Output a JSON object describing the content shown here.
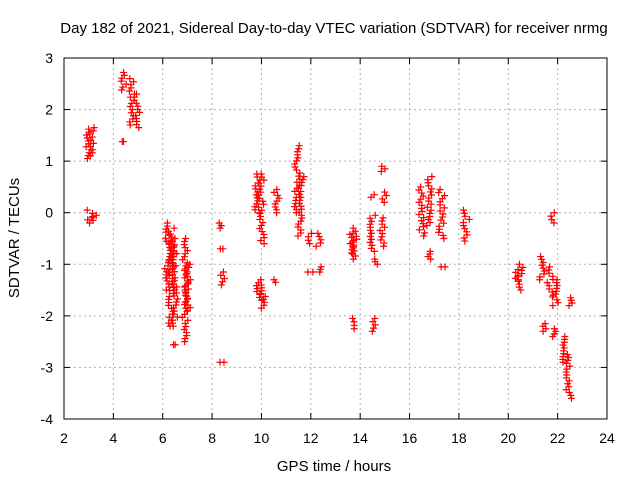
{
  "chart_data": {
    "type": "scatter",
    "title": "Day 182 of 2021, Sidereal Day-to-day VTEC variation (SDTVAR) for receiver nrmg",
    "xlabel": "GPS time / hours",
    "ylabel": "SDTVAR / TECUs",
    "xlim": [
      2,
      24
    ],
    "ylim": [
      -4,
      3
    ],
    "xticks": [
      "2",
      "4",
      "6",
      "8",
      "10",
      "12",
      "14",
      "16",
      "18",
      "20",
      "22",
      "24"
    ],
    "yticks": [
      "3",
      "2",
      "1",
      "0",
      "-1",
      "-2",
      "-3",
      "-4"
    ],
    "grid": true,
    "marker": "+",
    "color": "#ff0000",
    "clusters": [
      {
        "x": 3.0,
        "y": [
          1.05,
          1.62
        ]
      },
      {
        "x": 3.15,
        "y": [
          1.1,
          1.65
        ]
      },
      {
        "x": 3.05,
        "y": [
          -0.2,
          0.05
        ]
      },
      {
        "x": 3.2,
        "y": [
          -0.15,
          -0.05
        ]
      },
      {
        "x": 4.4,
        "y": [
          2.38,
          2.72
        ]
      },
      {
        "x": 4.4,
        "y": [
          1.38,
          1.38
        ]
      },
      {
        "x": 4.75,
        "y": [
          1.7,
          2.6
        ]
      },
      {
        "x": 4.95,
        "y": [
          1.65,
          2.3
        ]
      },
      {
        "x": 6.2,
        "y": [
          -1.5,
          -0.2
        ]
      },
      {
        "x": 6.35,
        "y": [
          -2.2,
          -0.3
        ]
      },
      {
        "x": 6.5,
        "y": [
          -2.2,
          -0.5
        ]
      },
      {
        "x": 6.55,
        "y": [
          -2.56,
          -2.56
        ]
      },
      {
        "x": 6.9,
        "y": [
          -2.5,
          -0.5
        ]
      },
      {
        "x": 7.0,
        "y": [
          -1.9,
          -1.0
        ]
      },
      {
        "x": 8.4,
        "y": [
          -0.3,
          -0.2
        ]
      },
      {
        "x": 8.4,
        "y": [
          -0.7,
          -0.7
        ]
      },
      {
        "x": 8.4,
        "y": [
          -1.4,
          -1.15
        ]
      },
      {
        "x": 8.4,
        "y": [
          -2.9,
          -2.9
        ]
      },
      {
        "x": 9.85,
        "y": [
          0.0,
          0.75
        ]
      },
      {
        "x": 10.0,
        "y": [
          -0.6,
          0.75
        ]
      },
      {
        "x": 9.9,
        "y": [
          -1.7,
          -1.3
        ]
      },
      {
        "x": 10.05,
        "y": [
          -1.85,
          -1.4
        ]
      },
      {
        "x": 10.6,
        "y": [
          0.0,
          0.45
        ]
      },
      {
        "x": 10.6,
        "y": [
          -1.35,
          -1.3
        ]
      },
      {
        "x": 11.45,
        "y": [
          0.0,
          1.3
        ]
      },
      {
        "x": 11.6,
        "y": [
          -0.45,
          0.7
        ]
      },
      {
        "x": 12.0,
        "y": [
          -0.6,
          -0.4
        ]
      },
      {
        "x": 12.3,
        "y": [
          -0.65,
          -0.4
        ]
      },
      {
        "x": 12.0,
        "y": [
          -1.15,
          -1.15
        ]
      },
      {
        "x": 12.3,
        "y": [
          -1.15,
          -1.05
        ]
      },
      {
        "x": 13.7,
        "y": [
          -0.9,
          -0.3
        ]
      },
      {
        "x": 13.8,
        "y": [
          -0.8,
          -0.4
        ]
      },
      {
        "x": 13.75,
        "y": [
          -2.25,
          -2.05
        ]
      },
      {
        "x": 14.5,
        "y": [
          -0.75,
          -0.05
        ]
      },
      {
        "x": 14.6,
        "y": [
          -1.0,
          -0.9
        ]
      },
      {
        "x": 14.55,
        "y": [
          -2.3,
          -2.05
        ]
      },
      {
        "x": 14.5,
        "y": [
          0.3,
          0.35
        ]
      },
      {
        "x": 14.9,
        "y": [
          -0.65,
          -0.1
        ]
      },
      {
        "x": 14.95,
        "y": [
          0.8,
          0.9
        ]
      },
      {
        "x": 15.0,
        "y": [
          0.2,
          0.4
        ]
      },
      {
        "x": 16.5,
        "y": [
          -0.45,
          0.5
        ]
      },
      {
        "x": 16.8,
        "y": [
          -0.25,
          0.7
        ]
      },
      {
        "x": 16.85,
        "y": [
          -0.9,
          -0.75
        ]
      },
      {
        "x": 17.3,
        "y": [
          -0.5,
          0.45
        ]
      },
      {
        "x": 17.4,
        "y": [
          -1.05,
          -1.05
        ]
      },
      {
        "x": 18.3,
        "y": [
          -0.55,
          0.05
        ]
      },
      {
        "x": 20.4,
        "y": [
          -1.5,
          -1.1
        ]
      },
      {
        "x": 20.5,
        "y": [
          -1.3,
          -1.0
        ]
      },
      {
        "x": 21.35,
        "y": [
          -1.3,
          -0.85
        ]
      },
      {
        "x": 21.45,
        "y": [
          -2.3,
          -2.15
        ]
      },
      {
        "x": 21.7,
        "y": [
          -1.6,
          -1.05
        ]
      },
      {
        "x": 21.8,
        "y": [
          -0.2,
          0.0
        ]
      },
      {
        "x": 21.85,
        "y": [
          -2.4,
          -2.25
        ]
      },
      {
        "x": 21.9,
        "y": [
          -1.8,
          -1.3
        ]
      },
      {
        "x": 22.3,
        "y": [
          -2.9,
          -2.4
        ]
      },
      {
        "x": 22.45,
        "y": [
          -3.6,
          -2.75
        ]
      },
      {
        "x": 22.55,
        "y": [
          -1.8,
          -1.65
        ]
      }
    ]
  }
}
